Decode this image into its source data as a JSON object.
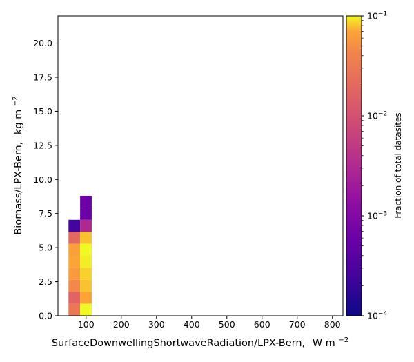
{
  "chart_data": {
    "type": "heatmap",
    "xlabel": "SurfaceDownwellingShortwaveRadiation/LPX-Bern,",
    "xlabel_unit": "W m",
    "xlabel_unit_exp": "−2",
    "ylabel": "Biomass/LPX-Bern,",
    "ylabel_unit": "kg m",
    "ylabel_unit_exp": "−2",
    "xlim": [
      20,
      830
    ],
    "ylim": [
      0,
      22
    ],
    "x_ticks": [
      100,
      200,
      300,
      400,
      500,
      600,
      700,
      800
    ],
    "x_tick_labels": [
      "100",
      "200",
      "300",
      "400",
      "500",
      "600",
      "700",
      "800"
    ],
    "y_ticks": [
      0,
      2.5,
      5,
      7.5,
      10,
      12.5,
      15,
      17.5,
      20
    ],
    "y_tick_labels": [
      "0.0",
      "2.5",
      "5.0",
      "7.5",
      "10.0",
      "12.5",
      "15.0",
      "17.5",
      "20.0"
    ],
    "colorbar": {
      "label": "Fraction of total datasites",
      "scale": "log",
      "range": [
        0.0001,
        0.1
      ],
      "colormap": "plasma",
      "ticks": [
        {
          "value": 0.1,
          "base": "10",
          "exp": "−1"
        },
        {
          "value": 0.01,
          "base": "10",
          "exp": "−2"
        },
        {
          "value": 0.001,
          "base": "10",
          "exp": "−3"
        },
        {
          "value": 0.0001,
          "base": "10",
          "exp": "−4"
        }
      ]
    },
    "cells": [
      {
        "x0": 50,
        "x1": 83,
        "y0": 0,
        "y1": 0.88,
        "value": 0.03
      },
      {
        "x0": 50,
        "x1": 83,
        "y0": 0.88,
        "y1": 1.76,
        "value": 0.018
      },
      {
        "x0": 50,
        "x1": 83,
        "y0": 1.76,
        "y1": 2.64,
        "value": 0.045
      },
      {
        "x0": 50,
        "x1": 83,
        "y0": 2.64,
        "y1": 3.52,
        "value": 0.06
      },
      {
        "x0": 50,
        "x1": 83,
        "y0": 3.52,
        "y1": 4.4,
        "value": 0.07
      },
      {
        "x0": 50,
        "x1": 83,
        "y0": 4.4,
        "y1": 5.28,
        "value": 0.065
      },
      {
        "x0": 50,
        "x1": 83,
        "y0": 5.28,
        "y1": 6.16,
        "value": 0.02
      },
      {
        "x0": 50,
        "x1": 83,
        "y0": 6.16,
        "y1": 7.04,
        "value": 0.00025
      },
      {
        "x0": 83,
        "x1": 116,
        "y0": 0,
        "y1": 0.88,
        "value": 0.1
      },
      {
        "x0": 83,
        "x1": 116,
        "y0": 0.88,
        "y1": 1.76,
        "value": 0.07
      },
      {
        "x0": 83,
        "x1": 116,
        "y0": 1.76,
        "y1": 2.64,
        "value": 0.08
      },
      {
        "x0": 83,
        "x1": 116,
        "y0": 2.64,
        "y1": 3.52,
        "value": 0.085
      },
      {
        "x0": 83,
        "x1": 116,
        "y0": 3.52,
        "y1": 4.4,
        "value": 0.095
      },
      {
        "x0": 83,
        "x1": 116,
        "y0": 4.4,
        "y1": 5.28,
        "value": 0.1
      },
      {
        "x0": 83,
        "x1": 116,
        "y0": 5.28,
        "y1": 6.16,
        "value": 0.08
      },
      {
        "x0": 83,
        "x1": 116,
        "y0": 6.16,
        "y1": 7.04,
        "value": 0.003
      },
      {
        "x0": 83,
        "x1": 116,
        "y0": 7.04,
        "y1": 7.92,
        "value": 0.0006
      },
      {
        "x0": 83,
        "x1": 116,
        "y0": 7.92,
        "y1": 8.8,
        "value": 0.0006
      }
    ]
  }
}
